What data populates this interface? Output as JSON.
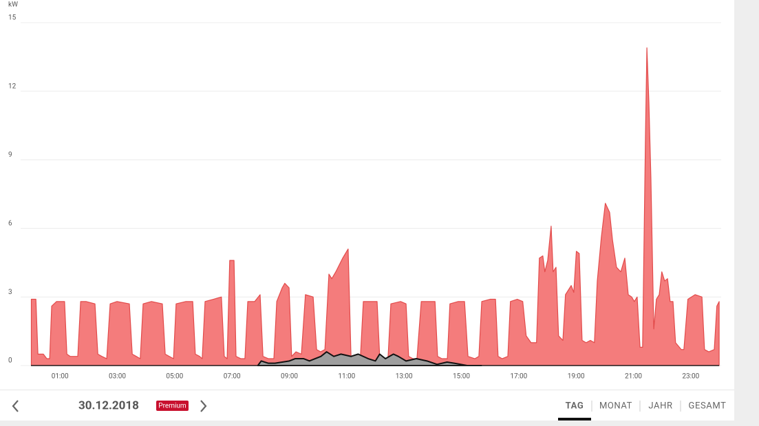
{
  "chart_data": {
    "type": "area",
    "y_label": "kW",
    "xlim": [
      0,
      24
    ],
    "xticks": [
      {
        "value": 1,
        "label": "01:00"
      },
      {
        "value": 3,
        "label": "03:00"
      },
      {
        "value": 5,
        "label": "05:00"
      },
      {
        "value": 7,
        "label": "07:00"
      },
      {
        "value": 9,
        "label": "09:00"
      },
      {
        "value": 11,
        "label": "11:00"
      },
      {
        "value": 13,
        "label": "13:00"
      },
      {
        "value": 15,
        "label": "15:00"
      },
      {
        "value": 17,
        "label": "17:00"
      },
      {
        "value": 19,
        "label": "19:00"
      },
      {
        "value": 21,
        "label": "21:00"
      },
      {
        "value": 23,
        "label": "23:00"
      }
    ],
    "ylim": [
      0,
      15
    ],
    "yticks": [
      0,
      3,
      6,
      9,
      12,
      15
    ],
    "grid": true,
    "series": [
      {
        "color": "#f47c7c",
        "stroke": "#e24a4a",
        "x": [
          0,
          0.16,
          0.23,
          0.42,
          0.54,
          0.64,
          0.71,
          0.88,
          1.07,
          1.16,
          1.24,
          1.36,
          1.5,
          1.62,
          1.72,
          1.91,
          2.22,
          2.32,
          2.46,
          2.63,
          2.75,
          2.99,
          3.42,
          3.52,
          3.66,
          3.8,
          3.9,
          4.19,
          4.57,
          4.67,
          4.81,
          4.96,
          5.05,
          5.39,
          5.63,
          5.72,
          5.87,
          5.96,
          6.06,
          6.35,
          6.63,
          6.73,
          6.83,
          6.92,
          7.07,
          7.14,
          7.31,
          7.45,
          7.55,
          7.79,
          7.98,
          8.08,
          8.27,
          8.46,
          8.56,
          8.75,
          8.84,
          8.99,
          9.08,
          9.23,
          9.42,
          9.56,
          9.83,
          9.95,
          10.09,
          10.24,
          10.38,
          10.48,
          10.62,
          10.86,
          11.05,
          11.15,
          11.34,
          11.48,
          11.58,
          11.82,
          12.06,
          12.15,
          12.3,
          12.44,
          12.54,
          12.88,
          13.07,
          13.16,
          13.31,
          13.45,
          13.6,
          13.91,
          14.08,
          14.17,
          14.32,
          14.51,
          14.6,
          14.89,
          15.11,
          15.23,
          15.47,
          15.61,
          15.71,
          16.0,
          16.19,
          16.28,
          16.42,
          16.62,
          16.71,
          16.95,
          17.14,
          17.26,
          17.43,
          17.62,
          17.72,
          17.84,
          17.91,
          18.01,
          18.13,
          18.2,
          18.3,
          18.39,
          18.54,
          18.63,
          18.83,
          18.92,
          19.01,
          19.11,
          19.21,
          19.35,
          19.5,
          19.64,
          19.74,
          19.88,
          20.02,
          20.17,
          20.27,
          20.41,
          20.56,
          20.7,
          20.82,
          20.94,
          21.03,
          21.13,
          21.23,
          21.32,
          21.42,
          21.47,
          21.54,
          21.61,
          21.71,
          21.8,
          21.9,
          21.99,
          22.09,
          22.19,
          22.28,
          22.38,
          22.47,
          22.67,
          22.76,
          22.9,
          23.15,
          23.39,
          23.48,
          23.63,
          23.82,
          23.91,
          23.99
        ],
        "values": [
          2.9,
          2.9,
          0.5,
          0.5,
          0.3,
          0.3,
          2.6,
          2.8,
          2.8,
          2.8,
          0.5,
          0.4,
          0.4,
          0.4,
          2.8,
          2.8,
          2.7,
          0.5,
          0.4,
          0.3,
          2.7,
          2.8,
          2.7,
          0.5,
          0.4,
          0.3,
          2.7,
          2.8,
          2.7,
          0.5,
          0.4,
          0.3,
          2.7,
          2.8,
          2.8,
          0.5,
          0.4,
          0.3,
          2.8,
          2.9,
          3.0,
          0.4,
          0.3,
          4.6,
          4.6,
          0.4,
          0.3,
          0.3,
          2.8,
          2.8,
          3.1,
          0.4,
          0.3,
          0.3,
          2.8,
          3.4,
          3.6,
          3.4,
          0.4,
          0.6,
          0.5,
          3.1,
          3.0,
          0.7,
          0.6,
          0.7,
          4.0,
          3.8,
          4.1,
          4.7,
          5.1,
          0.4,
          0.4,
          0.4,
          2.8,
          2.8,
          2.8,
          0.4,
          0.3,
          0.3,
          2.7,
          2.8,
          2.7,
          0.4,
          0.3,
          0.3,
          2.8,
          2.8,
          2.8,
          0.4,
          0.3,
          0.3,
          2.7,
          2.8,
          2.8,
          0.4,
          0.3,
          0.4,
          2.8,
          2.9,
          2.9,
          0.4,
          0.3,
          0.4,
          2.8,
          2.9,
          2.8,
          1.3,
          1.0,
          1.0,
          4.7,
          4.8,
          4.1,
          4.6,
          6.1,
          4.1,
          4.3,
          1.3,
          1.1,
          3.1,
          3.5,
          3.2,
          5.0,
          4.9,
          1.1,
          1.0,
          1.1,
          1.0,
          3.7,
          5.6,
          7.1,
          6.7,
          5.5,
          4.3,
          4.1,
          4.7,
          3.1,
          3.0,
          2.8,
          3.0,
          0.8,
          0.8,
          10.0,
          13.9,
          11.5,
          8.2,
          1.6,
          2.9,
          3.1,
          4.1,
          3.7,
          3.8,
          2.8,
          2.8,
          1.0,
          0.7,
          0.7,
          2.9,
          3.1,
          3.0,
          0.7,
          0.6,
          0.7,
          2.6,
          2.8
        ]
      },
      {
        "color": "#9e9e9e",
        "stroke": "#111111",
        "x": [
          7.9,
          8.02,
          8.27,
          8.5,
          9.0,
          9.2,
          9.5,
          9.7,
          10.1,
          10.3,
          10.55,
          10.8,
          11.15,
          11.4,
          11.75,
          12.0,
          12.15,
          12.35,
          12.63,
          12.8,
          13.07,
          13.43,
          13.8,
          14.15,
          14.5,
          14.75,
          15.2,
          15.7
        ],
        "values": [
          0,
          0.2,
          0.1,
          0.1,
          0.2,
          0.3,
          0.3,
          0.2,
          0.4,
          0.6,
          0.4,
          0.5,
          0.4,
          0.5,
          0.3,
          0.2,
          0.5,
          0.3,
          0.5,
          0.4,
          0.2,
          0.3,
          0.2,
          0.05,
          0.15,
          0.1,
          0,
          0
        ]
      }
    ]
  },
  "navigation": {
    "date": "30.12.2018",
    "badge": "Premium",
    "tabs": [
      "TAG",
      "MONAT",
      "JAHR",
      "GESAMT"
    ],
    "active_tab": 0
  }
}
